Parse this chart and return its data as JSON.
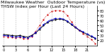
{
  "title": "Milwaukee Weather  Outdoor Temperature (vs)  THSW Index per Hour (Last 24 Hours)",
  "hours": [
    0,
    1,
    2,
    3,
    4,
    5,
    6,
    7,
    8,
    9,
    10,
    11,
    12,
    13,
    14,
    15,
    16,
    17,
    18,
    19,
    20,
    21,
    22,
    23
  ],
  "outdoor_temp": [
    32,
    31,
    30,
    29,
    30,
    28,
    27,
    30,
    35,
    42,
    50,
    56,
    60,
    62,
    63,
    62,
    58,
    52,
    46,
    40,
    36,
    32,
    28,
    24
  ],
  "thsw_index": [
    28,
    27,
    26,
    25,
    26,
    24,
    23,
    28,
    38,
    50,
    62,
    72,
    78,
    80,
    80,
    78,
    70,
    58,
    48,
    40,
    34,
    28,
    22,
    14
  ],
  "heat_index": [
    30,
    29,
    28,
    27,
    28,
    26,
    25,
    29,
    36,
    44,
    52,
    58,
    62,
    64,
    64,
    63,
    59,
    53,
    47,
    41,
    37,
    33,
    29,
    25
  ],
  "ylim_min": 10,
  "ylim_max": 90,
  "yticks": [
    20,
    30,
    40,
    50,
    60,
    70,
    80
  ],
  "bg_color": "#ffffff",
  "temp_color": "#000000",
  "thsw_color": "#cc0000",
  "heat_color": "#0000cc",
  "grid_color": "#aaaaaa",
  "title_fontsize": 4.5,
  "tick_fontsize": 3.5
}
